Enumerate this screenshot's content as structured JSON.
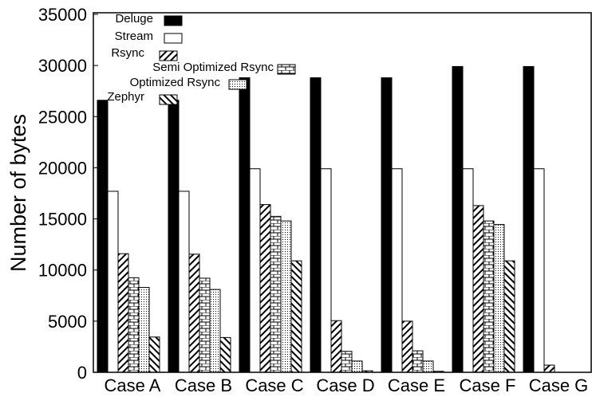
{
  "chart_data": {
    "type": "bar",
    "title": "",
    "xlabel": "",
    "ylabel": "Number of bytes",
    "ylim": [
      0,
      35000
    ],
    "yticks": [
      0,
      5000,
      10000,
      15000,
      20000,
      25000,
      30000,
      35000
    ],
    "categories": [
      "Case A",
      "Case B",
      "Case C",
      "Case D",
      "Case E",
      "Case F",
      "Case G"
    ],
    "legend_position": "top-left",
    "series": [
      {
        "name": "Deluge",
        "pattern": "solid",
        "values": [
          26600,
          26600,
          28800,
          28800,
          28800,
          29900,
          29900
        ]
      },
      {
        "name": "Stream",
        "pattern": "empty",
        "values": [
          17700,
          17700,
          19900,
          19900,
          19900,
          19900,
          19900
        ]
      },
      {
        "name": "Rsync",
        "pattern": "diag",
        "values": [
          11600,
          11550,
          16400,
          5050,
          5000,
          16300,
          700
        ]
      },
      {
        "name": "Semi Optimized Rsync",
        "pattern": "brick",
        "values": [
          9250,
          9200,
          15250,
          2050,
          2100,
          14800,
          0
        ]
      },
      {
        "name": "Optimized Rsync",
        "pattern": "dots",
        "values": [
          8300,
          8100,
          14800,
          1100,
          1100,
          14450,
          0
        ]
      },
      {
        "name": "Zephyr",
        "pattern": "backdiag",
        "values": [
          3450,
          3400,
          10900,
          150,
          100,
          10900,
          0
        ]
      }
    ]
  }
}
